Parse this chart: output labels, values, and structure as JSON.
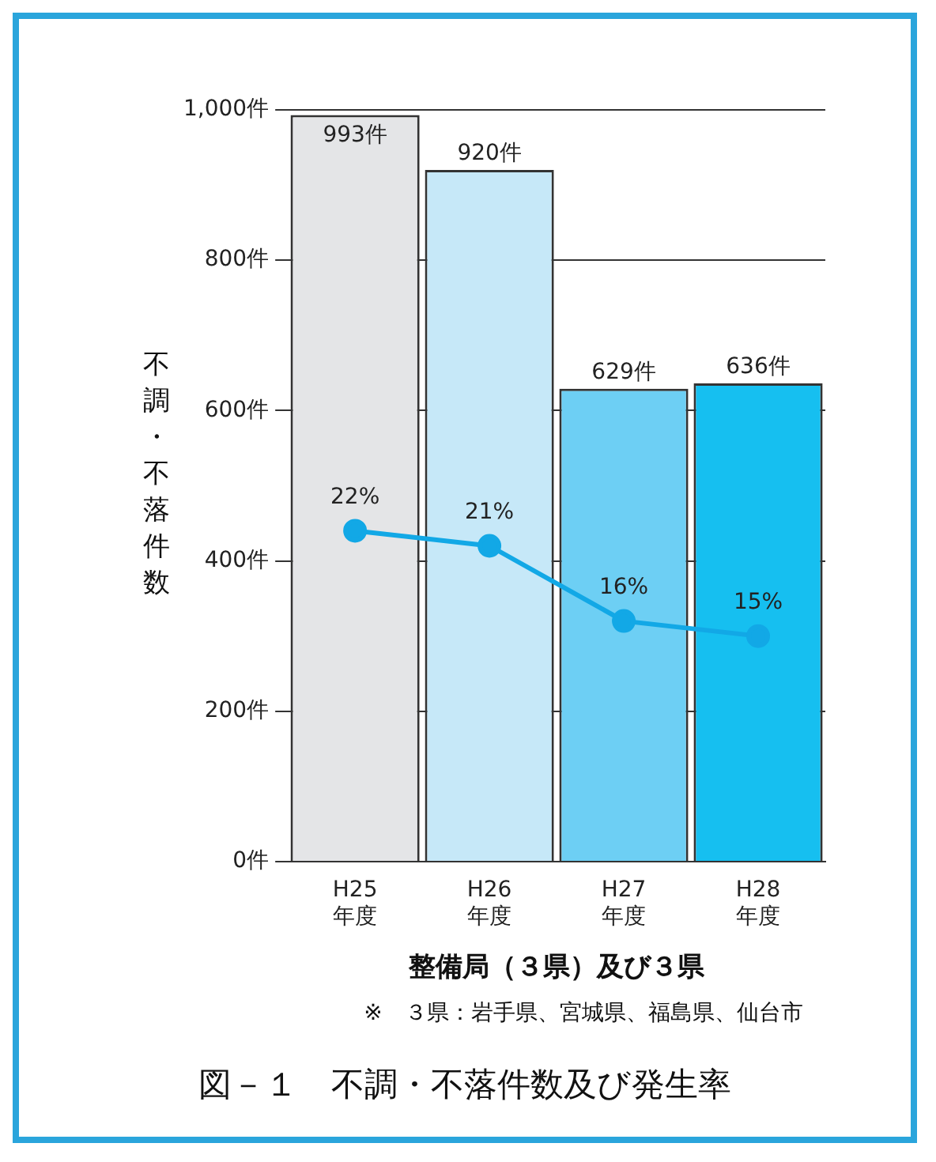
{
  "chart_data": {
    "type": "bar",
    "title": "図－１　不調・不落件数及び発生率",
    "xlabel": "整備局（３県）及び３県",
    "ylabel": "不調・不落件数",
    "categories": [
      "H25\n年度",
      "H26\n年度",
      "H27\n年度",
      "H28\n年度"
    ],
    "series": [
      {
        "colors": [
          "#e4e5e7",
          "#c6e8f8",
          "#6dcff4",
          "#16bff0"
        ],
        "values": [
          993,
          920,
          629,
          636
        ],
        "value_labels": [
          "993件",
          "920件",
          "629件",
          "636件"
        ]
      },
      {
        "type": "line",
        "axis": "y2",
        "color": "#12a8e6",
        "values": [
          22,
          21,
          16,
          15
        ],
        "value_labels": [
          "22%",
          "21%",
          "16%",
          "15%"
        ]
      }
    ],
    "ylim": [
      0,
      1000
    ],
    "yticks": [
      {
        "value": 0,
        "label": "0件"
      },
      {
        "value": 200,
        "label": "200件"
      },
      {
        "value": 400,
        "label": "400件"
      },
      {
        "value": 600,
        "label": "600件"
      },
      {
        "value": 800,
        "label": "800件"
      },
      {
        "value": 1000,
        "label": "1,000件"
      }
    ],
    "y2lim": [
      0,
      50
    ],
    "grid": "y",
    "legend": false,
    "marker": "circle",
    "annotations": [
      "※　３県：岩手県、宮城県、福島県、仙台市"
    ]
  }
}
